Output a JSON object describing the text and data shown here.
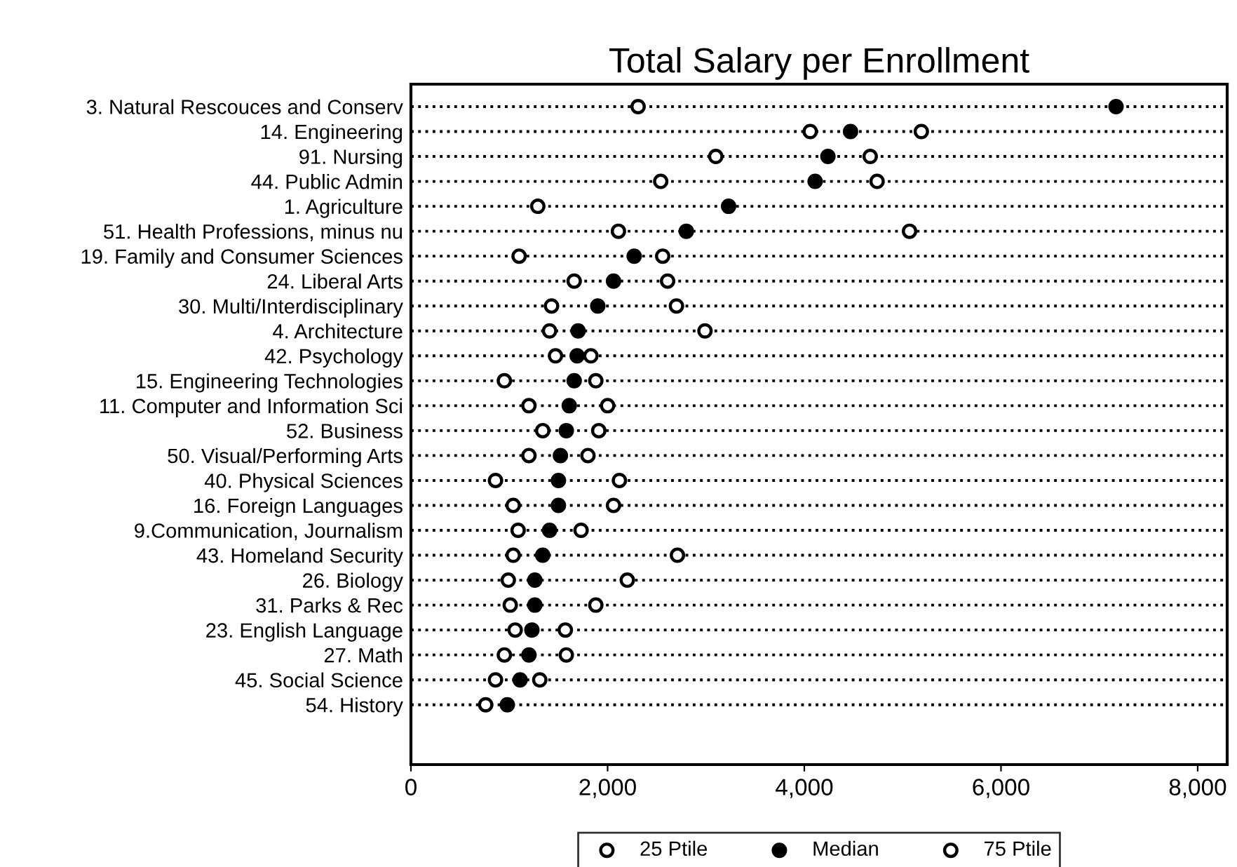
{
  "chart_data": {
    "type": "scatter",
    "orientation": "horizontal",
    "title": "Total Salary per Enrollment",
    "categories": [
      "3. Natural Rescouces and Conserv",
      "14. Engineering",
      "91. Nursing",
      "44. Public Admin",
      "1. Agriculture",
      "51. Health Professions, minus nu",
      "19. Family and Consumer Sciences",
      "24. Liberal Arts",
      "30. Multi/Interdisciplinary",
      "4. Architecture",
      "42. Psychology",
      "15. Engineering Technologies",
      "11. Computer and Information Sci",
      "52. Business",
      "50. Visual/Performing Arts",
      "40. Physical Sciences",
      "16. Foreign Languages",
      "9.Communication, Journalism",
      "43. Homeland Security",
      "26. Biology",
      "31. Parks & Rec",
      "23. English Language",
      "27. Math",
      "45. Social Science",
      "54. History"
    ],
    "series": [
      {
        "name": "25 Ptile",
        "color": "#ffffff",
        "marker": "circle",
        "values": [
          2310,
          4060,
          3100,
          2540,
          1290,
          2110,
          1100,
          1660,
          1430,
          1410,
          1470,
          950,
          1200,
          1340,
          1200,
          860,
          1040,
          1090,
          1040,
          990,
          1010,
          1060,
          950,
          860,
          760
        ]
      },
      {
        "name": "Median",
        "color": "#000000",
        "marker": "circle",
        "values": [
          7170,
          4470,
          4240,
          4110,
          3230,
          2800,
          2270,
          2060,
          1900,
          1700,
          1690,
          1660,
          1610,
          1580,
          1520,
          1500,
          1500,
          1410,
          1340,
          1260,
          1260,
          1230,
          1200,
          1110,
          980
        ]
      },
      {
        "name": "75 Ptile",
        "color": "#ffffff",
        "marker": "circle",
        "values": [
          null,
          5190,
          4670,
          4740,
          null,
          5070,
          2560,
          2610,
          2700,
          2990,
          1830,
          1880,
          2000,
          1910,
          1800,
          2120,
          2060,
          1730,
          2710,
          2200,
          1880,
          1570,
          1580,
          1310,
          null
        ]
      }
    ],
    "xlim": [
      0,
      8300
    ],
    "xticks": [
      0,
      {
        "value": 2000,
        "label": "2,000"
      },
      {
        "value": 4000,
        "label": "4,000"
      },
      {
        "value": 6000,
        "label": "6,000"
      },
      {
        "value": 8000,
        "label": "8,000"
      }
    ],
    "grid": "y",
    "line_style": "dotted",
    "legend": "bottom"
  }
}
